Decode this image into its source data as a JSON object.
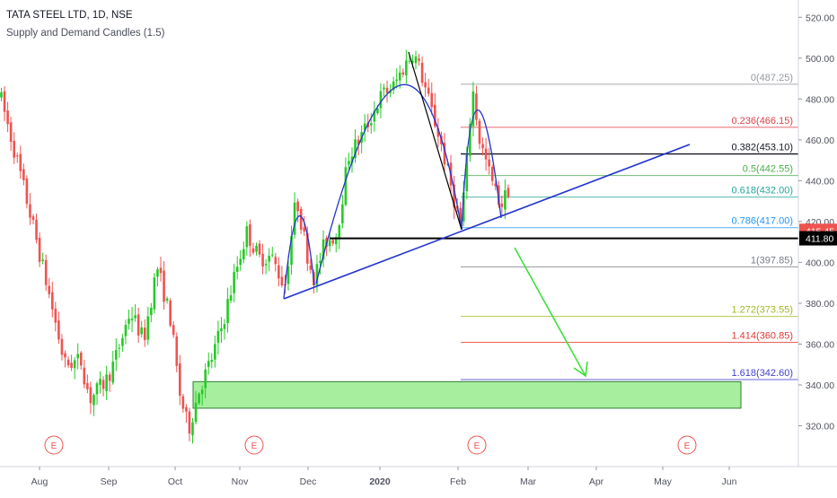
{
  "header": {
    "title": "TATA STEEL LTD, 1D, NSE",
    "indicator": "Supply and Demand Candles (1.5)"
  },
  "chart_data": {
    "type": "candlestick",
    "symbol": "TATA STEEL LTD",
    "interval": "1D",
    "exchange": "NSE",
    "ylim": [
      302,
      530
    ],
    "y_ticks": [
      "520.00",
      "500.00",
      "480.00",
      "460.00",
      "440.00",
      "420.00",
      "400.00",
      "380.00",
      "360.00",
      "340.00",
      "320.00"
    ],
    "x_ticks": [
      "Aug",
      "Sep",
      "Oct",
      "Nov",
      "Dec",
      "2020",
      "Feb",
      "Mar",
      "Apr",
      "May",
      "Jun"
    ],
    "price_labels": [
      {
        "value": 415.45,
        "text": "415.45",
        "color": "#ef5350"
      },
      {
        "value": 411.8,
        "text": "411.80",
        "color": "#000000"
      }
    ],
    "fib_levels": [
      {
        "ratio": "0",
        "price": 487.25,
        "label": "0(487.25)",
        "color": "#9598a1"
      },
      {
        "ratio": "0.236",
        "price": 466.15,
        "label": "0.236(466.15)",
        "color": "#e0434b"
      },
      {
        "ratio": "0.382",
        "price": 453.1,
        "label": "0.382(453.10)",
        "color": "#131722"
      },
      {
        "ratio": "0.5",
        "price": 442.55,
        "label": "0.5(442.55)",
        "color": "#4caf50"
      },
      {
        "ratio": "0.618",
        "price": 432.0,
        "label": "0.618(432.00)",
        "color": "#26a69a"
      },
      {
        "ratio": "0.786",
        "price": 417.0,
        "label": "0.786(417.00)",
        "color": "#2196f3"
      },
      {
        "ratio": "1",
        "price": 397.85,
        "label": "1(397.85)",
        "color": "#787b86"
      },
      {
        "ratio": "1.272",
        "price": 373.55,
        "label": "1.272(373.55)",
        "color": "#a3b922"
      },
      {
        "ratio": "1.414",
        "price": 360.85,
        "label": "1.414(360.85)",
        "color": "#e53935"
      },
      {
        "ratio": "1.618",
        "price": 342.6,
        "label": "1.618(342.60)",
        "color": "#3f3fd0"
      }
    ],
    "support_level": 411.8,
    "demand_zone": {
      "top": 341.6,
      "bottom": 328.6
    },
    "events": [
      "E",
      "E",
      "E",
      "E"
    ],
    "colors": {
      "up": "#26c926",
      "down": "#ef5350",
      "trendline": "#2233cc",
      "zone_fill": "#a7ee9f",
      "zone_stroke": "#2e7d32",
      "arrow": "#3de03d",
      "event": "#ef5350"
    }
  }
}
